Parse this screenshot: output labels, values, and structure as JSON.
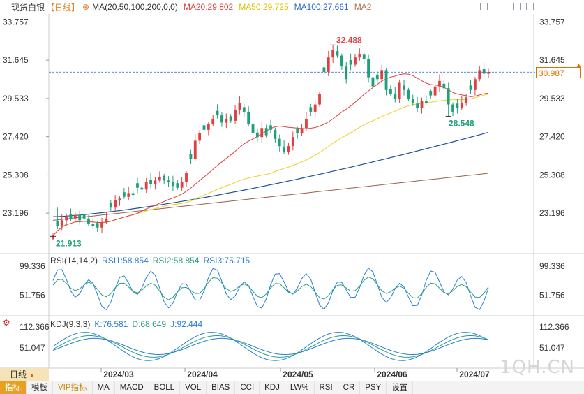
{
  "header": {
    "title": "现货白银",
    "period": "【日线】",
    "ma_def": "MA(20,50,100,200,0,0)",
    "ma20": "MA20:29.802",
    "ma50": "MA50:29.725",
    "ma100": "MA100:27.661",
    "ma200": "MA2"
  },
  "rsi_header": {
    "def": "RSI(14,14,2)",
    "rsi1": "RSI1:58.854",
    "rsi2": "RSI2:58.854",
    "rsi3": "RSI3:75.715"
  },
  "kdj_header": {
    "def": "KDJ(9,3,3)",
    "k": "K:76.581",
    "d": "D:68.649",
    "j": "J:92.444"
  },
  "last_price": "30.987",
  "period_button": "日线",
  "watermark": "1QH.CN",
  "tabs": [
    "指标",
    "模板",
    "VIP指标",
    "MA",
    "MACD",
    "BOLL",
    "VOL",
    "BIAS",
    "CCI",
    "KDJ",
    "LW%",
    "RSI",
    "CR",
    "PSY",
    "设置"
  ],
  "colors": {
    "up": "#e04040",
    "down": "#1fa07a",
    "ma20": "#e04040",
    "ma50": "#f0d020",
    "ma100": "#1f4f9a",
    "ma200": "#9a6050",
    "accent": "#e7a020"
  },
  "chart_data": {
    "type": "candlestick",
    "price_ticks": [
      "33.757",
      "31.645",
      "29.533",
      "27.420",
      "25.308",
      "23.196"
    ],
    "ylim": [
      21.0,
      34.2
    ],
    "x_labels": [
      "2024/03",
      "2024/04",
      "2024/05",
      "2024/06",
      "2024/07"
    ],
    "annotations": {
      "high": "32.488",
      "low": "21.913",
      "local_low": "28.548"
    },
    "ma_last": {
      "ma20": 29.802,
      "ma50": 29.725,
      "ma100": 27.661
    },
    "rsi": {
      "ticks": [
        "99.336",
        "51.756"
      ],
      "ylim": [
        20,
        110
      ]
    },
    "kdj": {
      "ticks": [
        "112.366",
        "51.047"
      ],
      "ylim": [
        -5,
        125
      ]
    }
  }
}
